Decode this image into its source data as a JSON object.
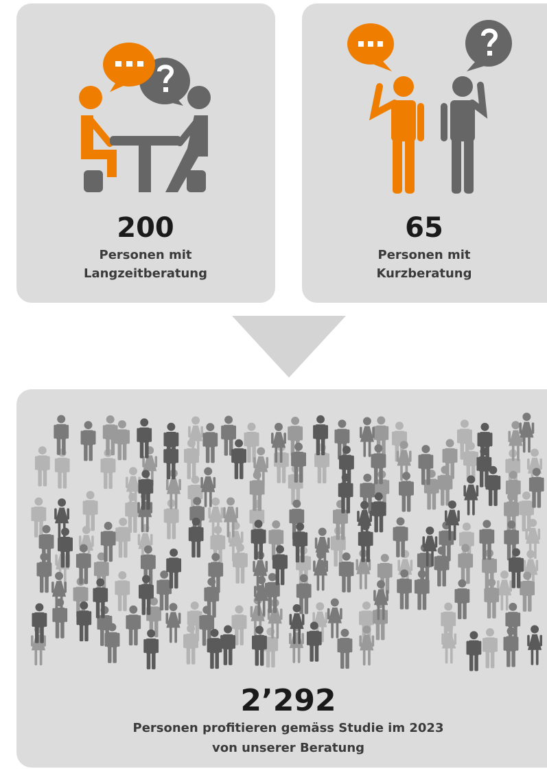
{
  "cards": [
    {
      "number": "200",
      "label": [
        "Personen mit",
        "Langzeitberatung"
      ]
    },
    {
      "number": "65",
      "label": [
        "Personen mit",
        "Kurzberatung"
      ]
    }
  ],
  "result": {
    "number": "2’292",
    "label": [
      "Personen profitieren gemäss Studie im 2023",
      "von unserer Beratung"
    ]
  }
}
